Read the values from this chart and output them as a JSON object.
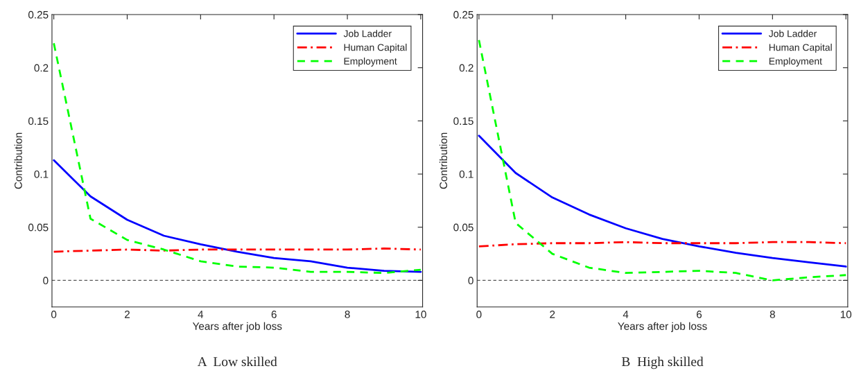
{
  "chart_data": [
    {
      "type": "line",
      "title": "A  Low skilled",
      "xlabel": "Years after job loss",
      "ylabel": "Contribution",
      "x": [
        0,
        1,
        2,
        3,
        4,
        5,
        6,
        7,
        8,
        9,
        10
      ],
      "series": [
        {
          "name": "Job Ladder",
          "color": "#0000ff",
          "line_style": "solid",
          "values": [
            0.113,
            0.079,
            0.057,
            0.042,
            0.034,
            0.027,
            0.021,
            0.018,
            0.012,
            0.009,
            0.008
          ]
        },
        {
          "name": "Human Capital",
          "color": "#ff0000",
          "line_style": "dashdot",
          "values": [
            0.027,
            0.028,
            0.029,
            0.028,
            0.029,
            0.029,
            0.029,
            0.029,
            0.029,
            0.03,
            0.029
          ]
        },
        {
          "name": "Employment",
          "color": "#00ff00",
          "line_style": "dashed",
          "values": [
            0.223,
            0.058,
            0.038,
            0.029,
            0.018,
            0.013,
            0.012,
            0.008,
            0.008,
            0.007,
            0.01
          ]
        }
      ],
      "ref_lines": [
        {
          "axis": "y",
          "value": 0,
          "color": "#555555",
          "line_style": "dashed"
        }
      ],
      "xlim": [
        -0.05,
        10.05
      ],
      "xticks": [
        0,
        2,
        4,
        6,
        8,
        10
      ],
      "ylim": [
        -0.025,
        0.25
      ],
      "yticks": [
        0,
        0.05,
        0.1,
        0.15,
        0.2,
        0.25
      ],
      "legend": "top right",
      "grid": false
    },
    {
      "type": "line",
      "title": "B  High skilled",
      "xlabel": "Years after job loss",
      "ylabel": "Contribution",
      "x": [
        0,
        1,
        2,
        3,
        4,
        5,
        6,
        7,
        8,
        9,
        10
      ],
      "series": [
        {
          "name": "Job Ladder",
          "color": "#0000ff",
          "line_style": "solid",
          "values": [
            0.136,
            0.101,
            0.078,
            0.062,
            0.049,
            0.039,
            0.032,
            0.026,
            0.021,
            0.017,
            0.013
          ]
        },
        {
          "name": "Human Capital",
          "color": "#ff0000",
          "line_style": "dashdot",
          "values": [
            0.032,
            0.034,
            0.035,
            0.035,
            0.036,
            0.035,
            0.035,
            0.035,
            0.036,
            0.036,
            0.035
          ]
        },
        {
          "name": "Employment",
          "color": "#00ff00",
          "line_style": "dashed",
          "values": [
            0.226,
            0.054,
            0.025,
            0.012,
            0.007,
            0.008,
            0.009,
            0.007,
            0.0,
            0.003,
            0.005
          ]
        }
      ],
      "ref_lines": [
        {
          "axis": "y",
          "value": 0,
          "color": "#555555",
          "line_style": "dashed"
        }
      ],
      "xlim": [
        -0.05,
        10.05
      ],
      "xticks": [
        0,
        2,
        4,
        6,
        8,
        10
      ],
      "ylim": [
        -0.025,
        0.25
      ],
      "yticks": [
        0,
        0.05,
        0.1,
        0.15,
        0.2,
        0.25
      ],
      "legend": "top right",
      "grid": false
    }
  ]
}
